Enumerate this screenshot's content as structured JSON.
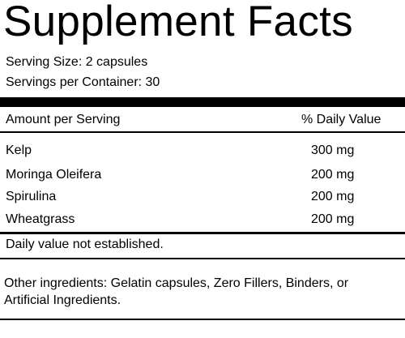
{
  "header": {
    "title": "Supplement Facts",
    "serving_size": "Serving Size: 2 capsules",
    "servings_per_container": "Servings per Container: 30"
  },
  "table": {
    "columns": [
      "Amount per Serving",
      "% Daily Value"
    ],
    "rows": [
      [
        "Kelp",
        "300 mg"
      ],
      [
        "Moringa Oleifera",
        "200 mg"
      ],
      [
        "Spirulina",
        "200 mg"
      ],
      [
        "Wheatgrass",
        "200 mg"
      ]
    ]
  },
  "footnote": "Daily value not established.",
  "other_ingredients": "Other ingredients: Gelatin capsules, Zero Fillers, Binders, or Artificial Ingredients."
}
